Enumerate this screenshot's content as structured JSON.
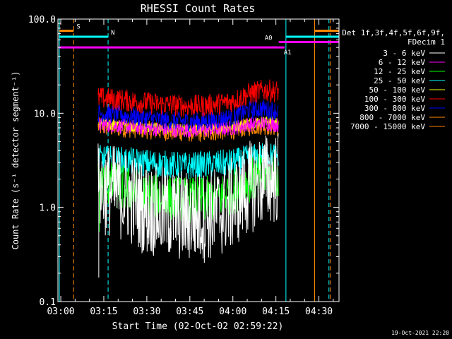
{
  "chart_data": {
    "type": "line",
    "title": "RHESSI Count Rates",
    "xlabel": "Start Time (02-Oct-02 02:59:22)",
    "ylabel": "Count Rate (s⁻¹ detector segment⁻¹)",
    "yscale": "log",
    "ylim": [
      0.1,
      100.0
    ],
    "xlim": [
      "02:59",
      "04:37"
    ],
    "x_ticks": [
      "03:00",
      "03:15",
      "03:30",
      "03:45",
      "04:00",
      "04:15",
      "04:30"
    ],
    "y_ticks": [
      "0.1",
      "1.0",
      "10.0",
      "100.0"
    ],
    "grid": false,
    "legend_position": "right",
    "legend_header": [
      "Det 1f,3f,4f,5f,6f,9f,",
      "FDecim 1"
    ],
    "data_start": "03:13",
    "data_end": "04:16",
    "series": [
      {
        "name": "3 - 6 keV",
        "color": "#ffffff",
        "values": [
          1.6,
          1.5,
          1.3,
          1.0,
          0.9,
          0.85,
          0.8,
          0.8,
          0.9,
          1.1,
          1.6,
          2.0,
          2.1
        ],
        "noise": 0.5
      },
      {
        "name": "6 - 12 keV",
        "color": "#ff00ff",
        "values": [
          7.5,
          7.4,
          7.2,
          7.0,
          6.8,
          6.6,
          6.6,
          6.6,
          6.8,
          7.0,
          7.6,
          7.8,
          7.5
        ],
        "noise": 0.08
      },
      {
        "name": "12 - 25 keV",
        "color": "#00ff00",
        "values": [
          1.8,
          1.7,
          1.55,
          1.4,
          1.3,
          1.25,
          1.2,
          1.2,
          1.3,
          1.5,
          1.9,
          2.2,
          2.2
        ],
        "noise": 0.25
      },
      {
        "name": "25 - 50 keV",
        "color": "#00ffff",
        "values": [
          3.3,
          3.2,
          3.1,
          3.0,
          2.9,
          2.8,
          2.75,
          2.8,
          2.9,
          3.0,
          3.3,
          3.5,
          3.5
        ],
        "noise": 0.15
      },
      {
        "name": "50 - 100 keV",
        "color": "#ffff00",
        "values": [
          7.8,
          7.6,
          7.4,
          7.1,
          6.9,
          6.8,
          6.7,
          6.7,
          6.9,
          7.2,
          7.9,
          8.2,
          8.0
        ],
        "noise": 0.06
      },
      {
        "name": "100 - 300 keV",
        "color": "#ff0000",
        "values": [
          14.5,
          14.0,
          13.6,
          13.0,
          12.5,
          12.2,
          12.0,
          12.0,
          12.5,
          13.5,
          16.0,
          17.5,
          17.0
        ],
        "noise": 0.12
      },
      {
        "name": "300 - 800 keV",
        "color": "#0000ff",
        "values": [
          10.0,
          9.8,
          9.4,
          9.0,
          8.6,
          8.3,
          8.2,
          8.2,
          8.6,
          9.2,
          10.8,
          11.2,
          10.5
        ],
        "noise": 0.1
      },
      {
        "name": "800 - 7000 keV",
        "color": "#ff8c00",
        "values": [
          7.2,
          7.0,
          6.9,
          6.7,
          6.5,
          6.3,
          6.2,
          6.2,
          6.4,
          6.6,
          7.2,
          7.4,
          7.0
        ],
        "noise": 0.1
      },
      {
        "name": "7000 - 15000 keV",
        "color": "#ff8000",
        "values": [],
        "noise": 0
      }
    ],
    "vertical_markers": [
      {
        "time": "02:59.5",
        "color": "#00ffff",
        "style": "solid"
      },
      {
        "time": "03:04.5",
        "color": "#ff8c00",
        "style": "dashed"
      },
      {
        "time": "03:16.5",
        "color": "#00ffff",
        "style": "dashed"
      },
      {
        "time": "04:18.5",
        "color": "#00ffff",
        "style": "solid"
      },
      {
        "time": "04:28.5",
        "color": "#ff8c00",
        "style": "solid"
      },
      {
        "time": "04:33.5",
        "color": "#00ffff",
        "style": "dashed"
      },
      {
        "time": "04:34.0",
        "color": "#ff8c00",
        "style": "dashed"
      }
    ],
    "horizontal_bars": [
      {
        "label": "S",
        "color": "#ff8c00",
        "y": 75,
        "from": "02:59.5",
        "to": "03:04.5"
      },
      {
        "label": "N",
        "color": "#00ffff",
        "y": 65,
        "from": "02:59.5",
        "to": "03:16.5"
      },
      {
        "label": "",
        "color": "#ff00ff",
        "y": 50,
        "from": "02:59.5",
        "to": "04:16"
      },
      {
        "label": "A0",
        "color": "#ff00ff",
        "y": 57,
        "from": "04:16",
        "to": "04:37"
      },
      {
        "label": "A1",
        "color": "#ff00ff",
        "y": 50,
        "from": "04:16",
        "to": "04:18"
      },
      {
        "label": "",
        "color": "#00ffff",
        "y": 65,
        "from": "04:18.5",
        "to": "04:37"
      },
      {
        "label": "",
        "color": "#ff8c00",
        "y": 75,
        "from": "04:28.5",
        "to": "04:37"
      }
    ],
    "timestamp": "19-Oct-2021 22:20"
  }
}
